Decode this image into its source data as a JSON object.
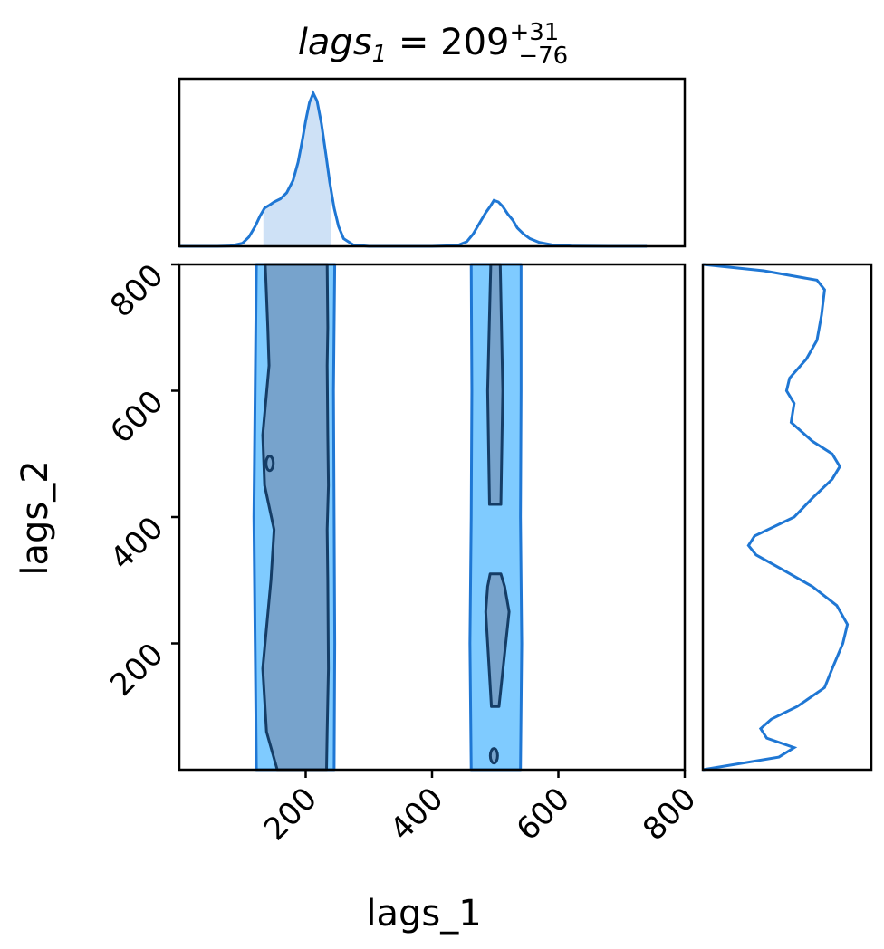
{
  "chart_data": [
    {
      "panel": "marginal-top",
      "type": "line",
      "title_parts": {
        "var": "lags",
        "sub": "1",
        "eq": " = 209",
        "sup": "+31",
        "subinf": "−76"
      },
      "x_range": [
        0,
        800
      ],
      "shaded_interval": [
        133,
        240
      ],
      "x": [
        0,
        60,
        80,
        100,
        110,
        120,
        128,
        135,
        143,
        150,
        160,
        170,
        180,
        188,
        195,
        200,
        206,
        212,
        218,
        225,
        232,
        238,
        245,
        252,
        260,
        275,
        300,
        400,
        440,
        455,
        465,
        475,
        485,
        492,
        498,
        505,
        512,
        520,
        528,
        535,
        545,
        555,
        570,
        590,
        620,
        680,
        740
      ],
      "density": [
        0.0,
        0.0,
        0.002,
        0.02,
        0.06,
        0.13,
        0.2,
        0.25,
        0.27,
        0.29,
        0.31,
        0.35,
        0.43,
        0.55,
        0.7,
        0.82,
        0.94,
        1.0,
        0.95,
        0.8,
        0.6,
        0.42,
        0.25,
        0.13,
        0.05,
        0.01,
        0.0,
        0.0,
        0.005,
        0.03,
        0.08,
        0.15,
        0.22,
        0.26,
        0.3,
        0.29,
        0.26,
        0.21,
        0.17,
        0.12,
        0.08,
        0.05,
        0.025,
        0.01,
        0.002,
        0.0,
        0.0
      ]
    },
    {
      "panel": "joint",
      "type": "contour",
      "x_range": [
        0,
        800
      ],
      "y_range": [
        0,
        800
      ],
      "xlabel": "lags_1",
      "ylabel": "lags_2",
      "x_ticks": [
        200,
        400,
        600,
        800
      ],
      "y_ticks": [
        200,
        400,
        600,
        800
      ],
      "outer_regions": [
        {
          "x_left": [
            122,
            120,
            118,
            120,
            122
          ],
          "x_right": [
            245,
            246,
            245,
            244,
            246
          ],
          "y": [
            0,
            200,
            400,
            600,
            800
          ]
        },
        {
          "x_left": [
            462,
            460,
            462,
            463,
            462
          ],
          "x_right": [
            540,
            542,
            540,
            541,
            541
          ],
          "y": [
            0,
            200,
            400,
            600,
            800
          ]
        }
      ],
      "inner_regions": [
        {
          "x_left": [
            155,
            138,
            132,
            145,
            150,
            135,
            132,
            142,
            140,
            136
          ],
          "x_right": [
            233,
            234,
            236,
            235,
            234,
            236,
            235,
            234,
            235,
            234
          ],
          "y": [
            0,
            60,
            160,
            300,
            380,
            450,
            530,
            640,
            700,
            800
          ]
        },
        {
          "x_left": [
            491,
            488,
            493
          ],
          "x_right": [
            509,
            512,
            508
          ],
          "y": [
            420,
            600,
            800
          ]
        },
        {
          "x_left": [
            494,
            485,
            488,
            492
          ],
          "x_right": [
            506,
            522,
            515,
            509
          ],
          "y": [
            100,
            250,
            290,
            310
          ]
        }
      ],
      "small_contours": [
        {
          "x": 143,
          "y": 485
        },
        {
          "x": 498,
          "y": 22
        }
      ]
    },
    {
      "panel": "marginal-right",
      "type": "line",
      "y_range": [
        0,
        800
      ],
      "y": [
        0,
        20,
        35,
        50,
        65,
        80,
        100,
        130,
        160,
        200,
        230,
        260,
        290,
        320,
        340,
        355,
        370,
        400,
        430,
        460,
        480,
        500,
        520,
        550,
        580,
        600,
        620,
        650,
        680,
        720,
        760,
        775,
        790,
        800
      ],
      "density": [
        0.0,
        0.5,
        0.6,
        0.42,
        0.38,
        0.45,
        0.62,
        0.8,
        0.85,
        0.92,
        0.95,
        0.88,
        0.72,
        0.5,
        0.35,
        0.3,
        0.34,
        0.6,
        0.72,
        0.85,
        0.9,
        0.85,
        0.72,
        0.58,
        0.6,
        0.55,
        0.57,
        0.68,
        0.75,
        0.78,
        0.8,
        0.75,
        0.4,
        0.0
      ],
      "density_max": 1.0
    }
  ]
}
